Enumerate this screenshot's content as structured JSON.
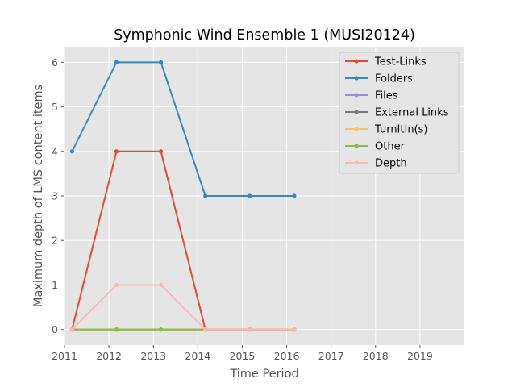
{
  "chart_data": {
    "type": "line",
    "title": "Symphonic Wind Ensemble 1 (MUSI20124)",
    "xlabel": "Time Period",
    "ylabel": "Maximum depth of LMS content items",
    "x": [
      2011.17,
      2012.17,
      2013.17,
      2014.17,
      2015.17,
      2016.17
    ],
    "xlim": [
      2011,
      2020
    ],
    "ylim": [
      -0.35,
      6.35
    ],
    "xticks": [
      2011,
      2012,
      2013,
      2014,
      2015,
      2016,
      2017,
      2018,
      2019
    ],
    "xtick_labels": [
      "2011",
      "2012",
      "2013",
      "2014",
      "2015",
      "2016",
      "2017",
      "2018",
      "2019"
    ],
    "yticks": [
      0,
      1,
      2,
      3,
      4,
      5,
      6
    ],
    "ytick_labels": [
      "0",
      "1",
      "2",
      "3",
      "4",
      "5",
      "6"
    ],
    "grid": true,
    "legend_position": "top-right",
    "background": "#e5e5e5",
    "series": [
      {
        "name": "Test-Links",
        "color": "#e24a33",
        "values": [
          0,
          4,
          4,
          0,
          0,
          0
        ]
      },
      {
        "name": "Folders",
        "color": "#348abd",
        "values": [
          4,
          6,
          6,
          3,
          3,
          3
        ]
      },
      {
        "name": "Files",
        "color": "#988ed5",
        "values": [
          0,
          0,
          0,
          0,
          0,
          0
        ]
      },
      {
        "name": "External Links",
        "color": "#777777",
        "values": [
          0,
          0,
          0,
          0,
          0,
          0
        ]
      },
      {
        "name": "TurnItIn(s)",
        "color": "#fbc15e",
        "values": [
          0,
          0,
          0,
          0,
          0,
          0
        ]
      },
      {
        "name": "Other",
        "color": "#8eba42",
        "values": [
          0,
          0,
          0,
          0,
          0,
          0
        ]
      },
      {
        "name": "Depth",
        "color": "#ffb5b8",
        "values": [
          0,
          1,
          1,
          0,
          0,
          0
        ]
      }
    ]
  }
}
